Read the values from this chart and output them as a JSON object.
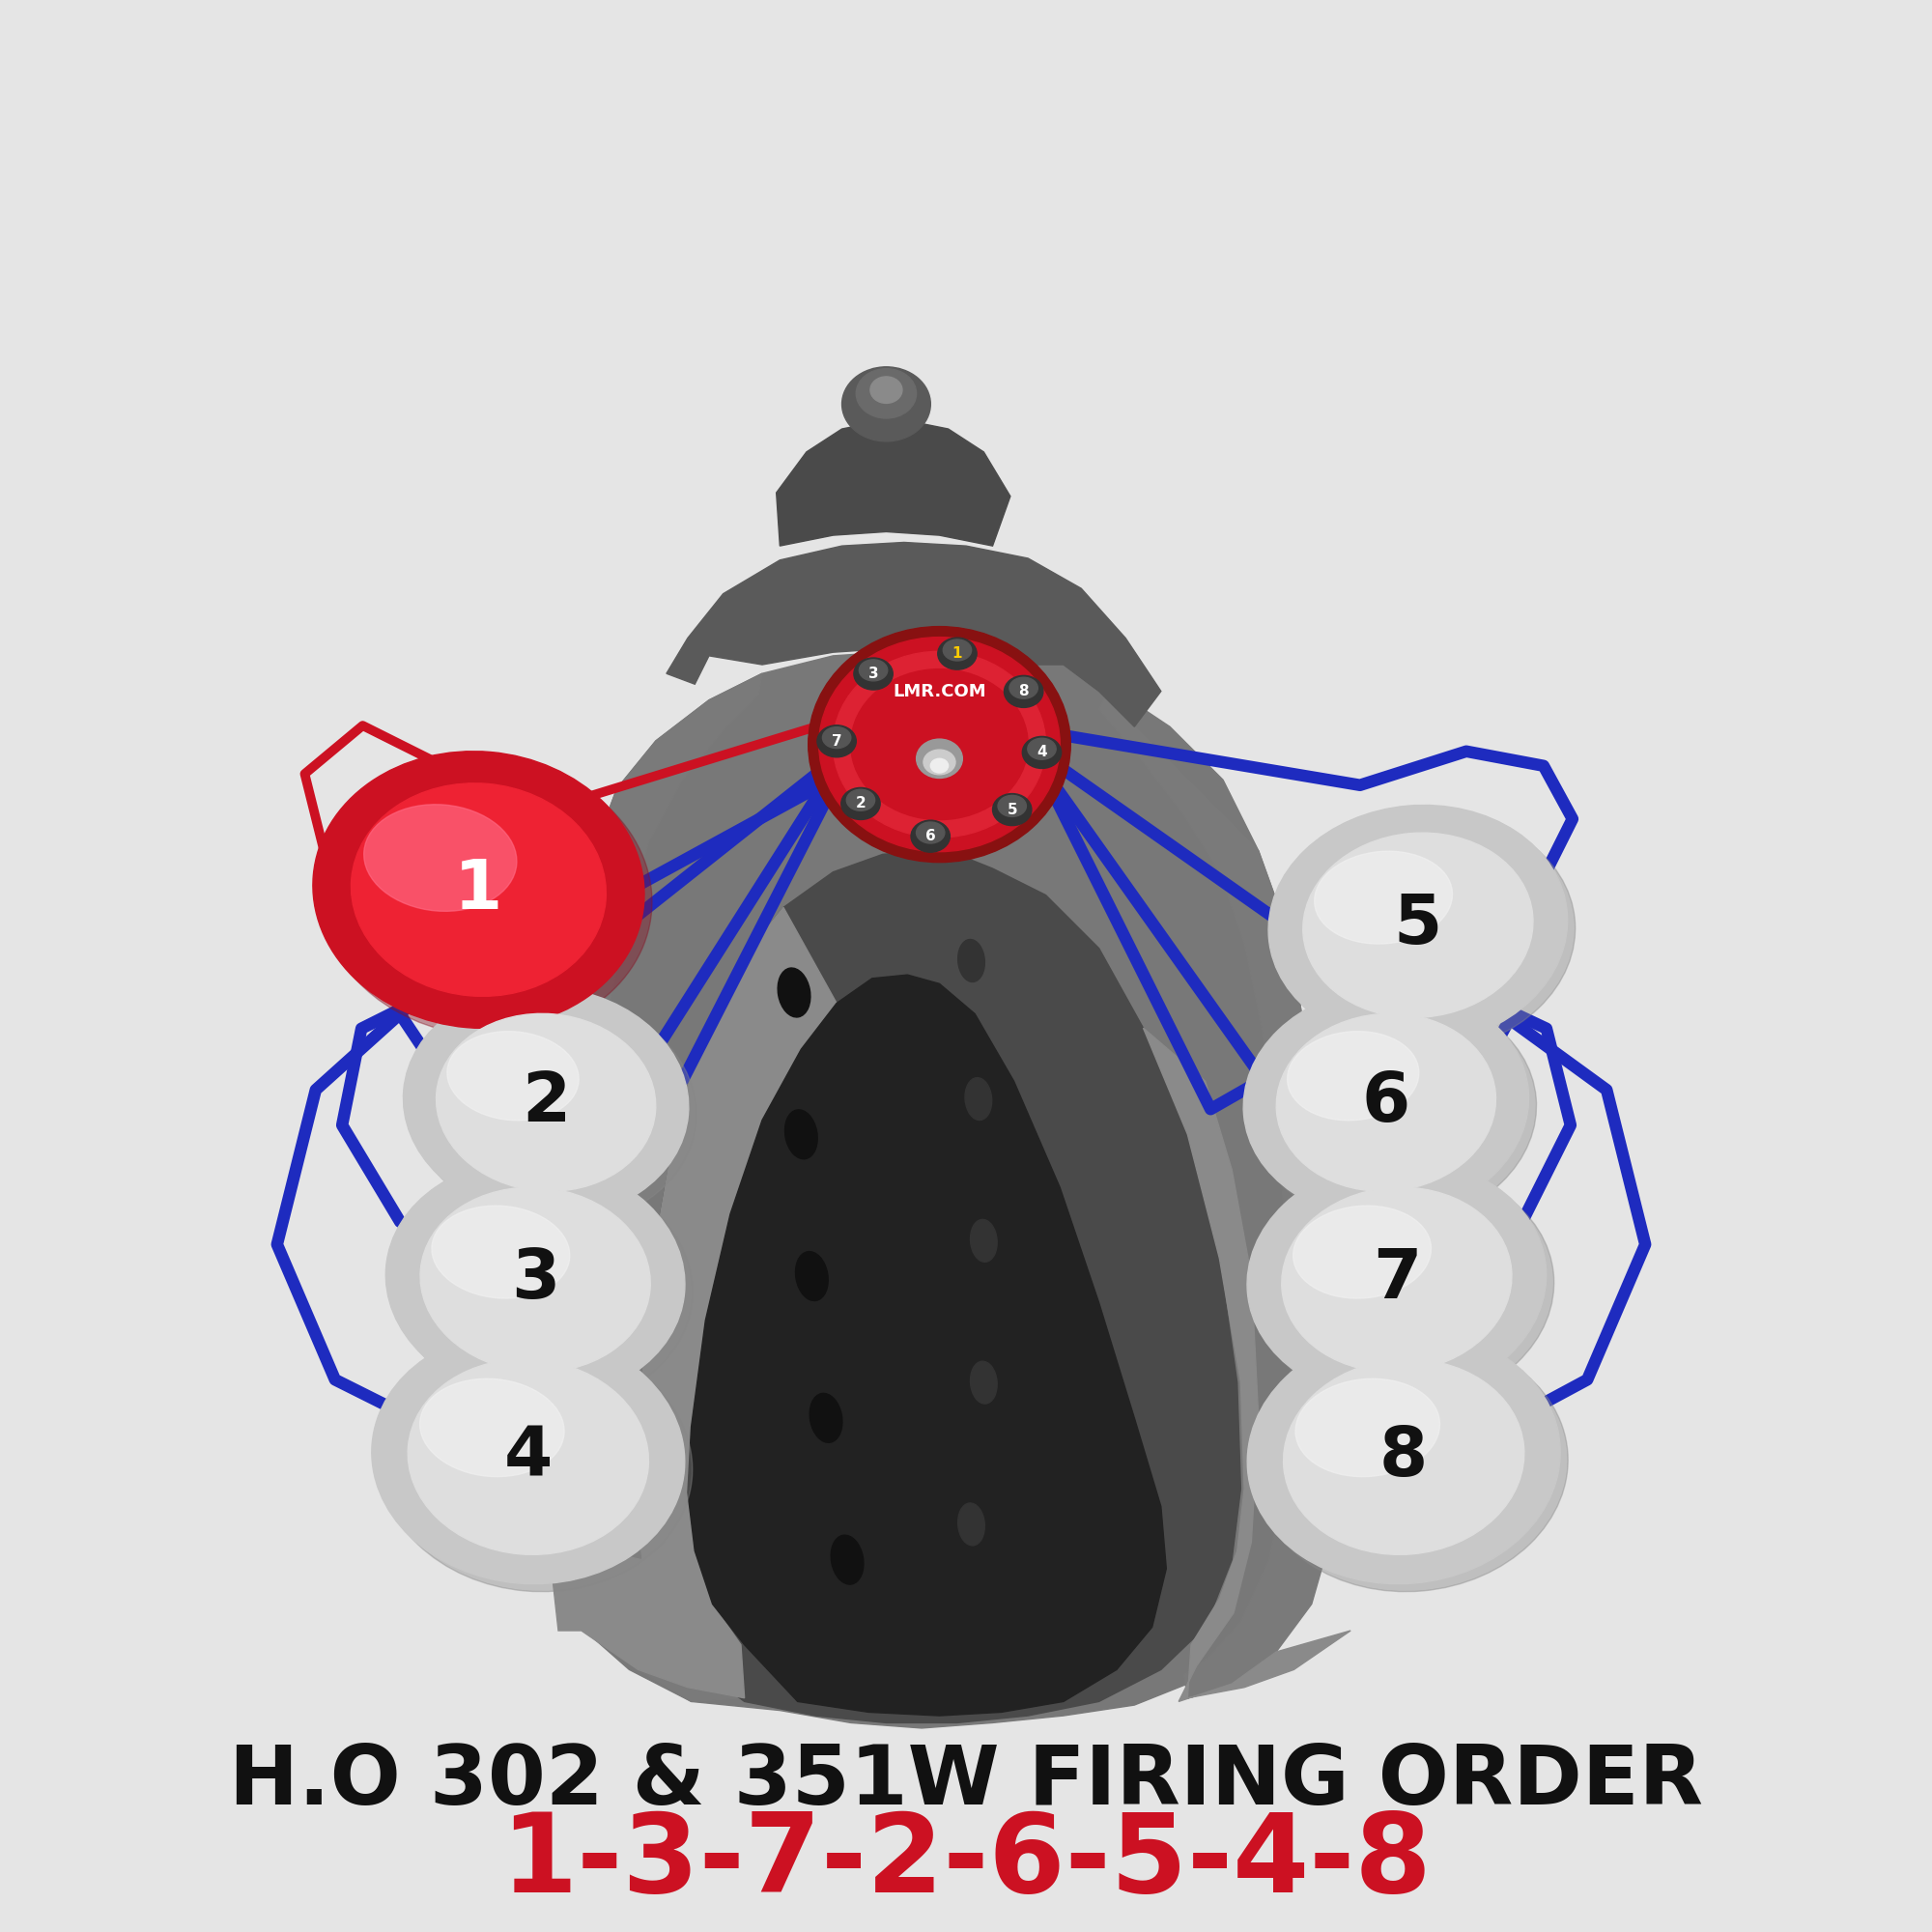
{
  "bg_color": "#e5e5e5",
  "title_line1": "H.O 302 & 351W FIRING ORDER",
  "title_line2": "1-3-7-2-6-5-4-8",
  "title_color": "#111111",
  "firing_order_color": "#cc1122",
  "wire_blue": "#1e2bbf",
  "wire_red": "#cc1122",
  "engine_base": "#7a7a7a",
  "engine_dark": "#3a3a3a",
  "engine_mid": "#5a5a5a",
  "engine_light": "#9a9a9a",
  "engine_lighter": "#b0b0b0",
  "cyl_outer": "#d8d8d8",
  "cyl_inner": "#eeeeee",
  "cyl_shadow": "#aaaaaa",
  "cyl1_outer": "#cc1122",
  "cyl1_inner": "#ee3344",
  "cyl1_hi": "#ff6677"
}
